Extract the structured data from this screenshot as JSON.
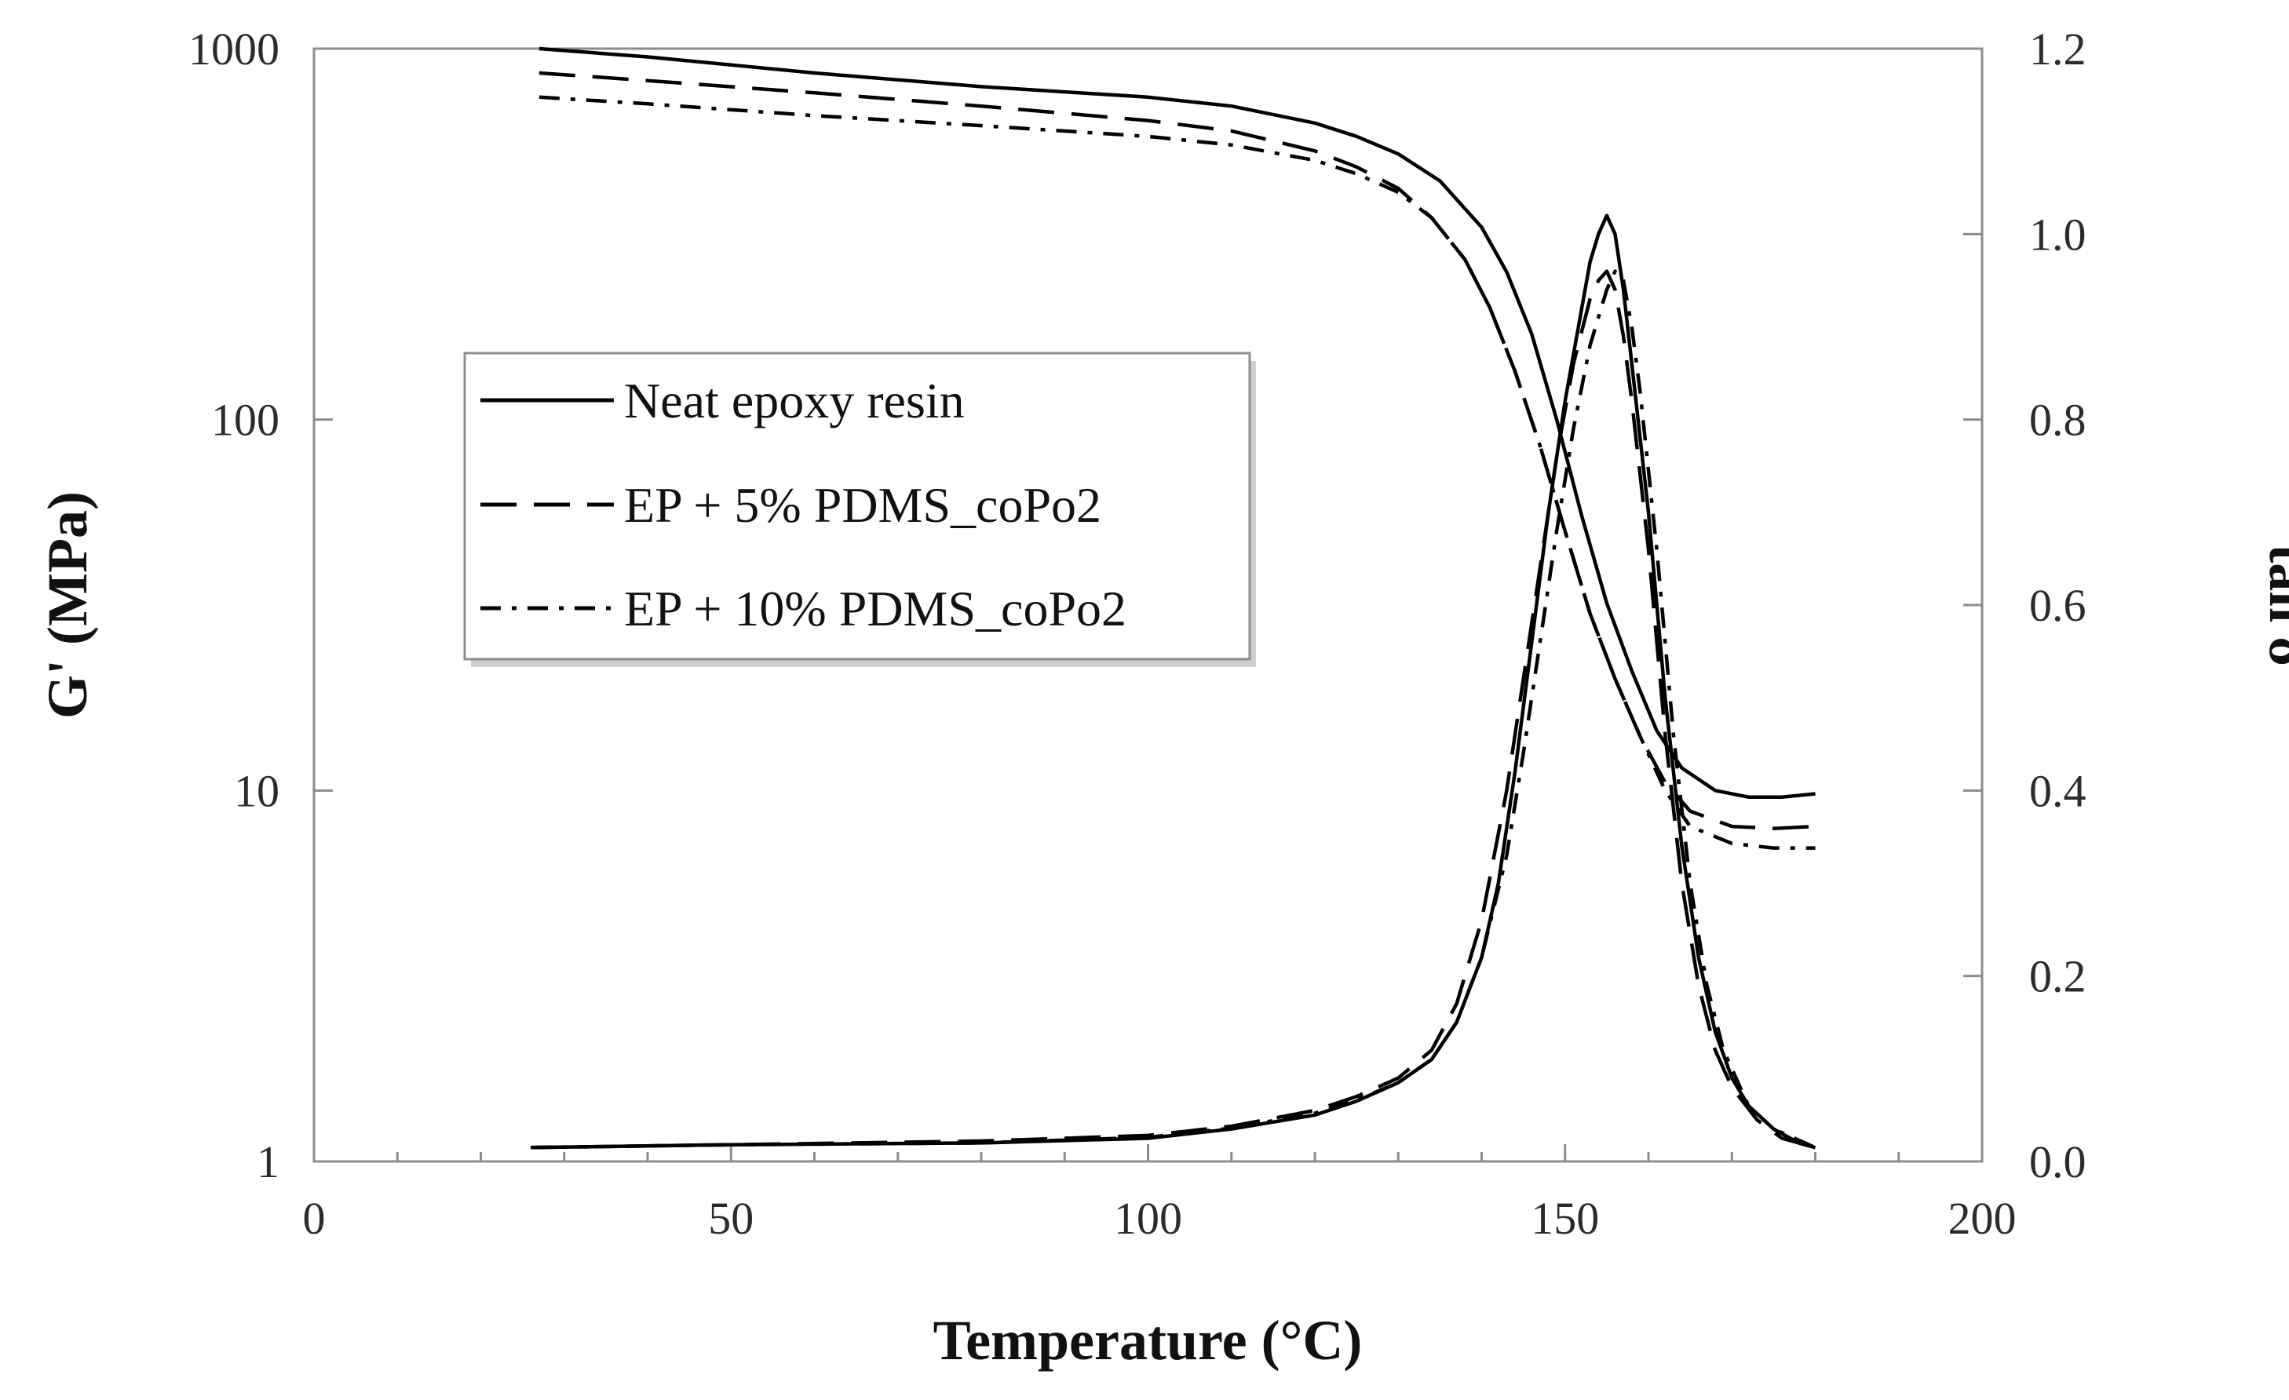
{
  "chart_data": {
    "type": "line",
    "title": "",
    "xlabel": "Temperature (°C)",
    "ylabel_left": "G' (MPa)",
    "ylabel_right": "tan δ",
    "xlim": [
      0,
      200
    ],
    "ylim_left": [
      1,
      1000
    ],
    "ylim_right": [
      0.0,
      1.2
    ],
    "yscale_left": "log",
    "grid": false,
    "legend_position": "center-left",
    "x_tick_labels": [
      "0",
      "50",
      "100",
      "150",
      "200"
    ],
    "y_left_tick_labels": [
      "1",
      "10",
      "100",
      "1000"
    ],
    "y_right_tick_labels": [
      "0.0",
      "0.2",
      "0.4",
      "0.6",
      "0.8",
      "1.0",
      "1.2"
    ],
    "series": [
      {
        "name": "Neat epoxy resin",
        "dash": "solid",
        "storage_modulus": {
          "x": [
            27,
            40,
            60,
            80,
            100,
            110,
            120,
            125,
            130,
            135,
            140,
            143,
            146,
            149,
            152,
            155,
            158,
            161,
            164,
            168,
            172,
            176,
            180
          ],
          "y": [
            1000,
            950,
            860,
            790,
            740,
            700,
            630,
            580,
            520,
            440,
            330,
            250,
            170,
            100,
            55,
            32,
            21,
            14.5,
            11.5,
            10,
            9.6,
            9.6,
            9.8
          ]
        },
        "tan_delta": {
          "x": [
            26,
            50,
            80,
            100,
            110,
            120,
            125,
            130,
            134,
            137,
            140,
            142,
            144,
            146,
            148,
            150,
            152,
            153,
            154,
            155,
            156,
            157,
            158,
            160,
            162,
            164,
            166,
            168,
            170,
            172,
            175,
            178,
            180
          ],
          "y": [
            0.015,
            0.018,
            0.02,
            0.025,
            0.035,
            0.05,
            0.065,
            0.085,
            0.11,
            0.15,
            0.22,
            0.3,
            0.42,
            0.56,
            0.7,
            0.82,
            0.92,
            0.97,
            1.0,
            1.02,
            1.0,
            0.94,
            0.86,
            0.7,
            0.5,
            0.34,
            0.22,
            0.14,
            0.09,
            0.06,
            0.035,
            0.02,
            0.015
          ]
        }
      },
      {
        "name": "EP + 5% PDMS_coPo2",
        "dash": "long-dash",
        "storage_modulus": {
          "x": [
            27,
            40,
            60,
            80,
            100,
            110,
            120,
            125,
            130,
            134,
            138,
            141,
            144,
            147,
            150,
            153,
            156,
            159,
            162,
            165,
            170,
            175,
            180
          ],
          "y": [
            860,
            820,
            760,
            700,
            640,
            600,
            530,
            480,
            420,
            350,
            270,
            200,
            135,
            85,
            50,
            30,
            20,
            14,
            10.5,
            8.8,
            8,
            7.9,
            8
          ]
        },
        "tan_delta": {
          "x": [
            26,
            50,
            80,
            100,
            110,
            120,
            125,
            130,
            134,
            137,
            140,
            143,
            145,
            147,
            149,
            151,
            153,
            154,
            155,
            156,
            157,
            158,
            160,
            162,
            164,
            166,
            168,
            170,
            173,
            176,
            180
          ],
          "y": [
            0.015,
            0.018,
            0.022,
            0.028,
            0.038,
            0.055,
            0.07,
            0.09,
            0.12,
            0.17,
            0.26,
            0.4,
            0.52,
            0.64,
            0.76,
            0.86,
            0.93,
            0.95,
            0.96,
            0.94,
            0.89,
            0.82,
            0.66,
            0.46,
            0.3,
            0.19,
            0.12,
            0.08,
            0.045,
            0.025,
            0.015
          ]
        }
      },
      {
        "name": "EP + 10% PDMS_coPo2",
        "dash": "dash-dot",
        "storage_modulus": {
          "x": [
            27,
            40,
            60,
            80,
            100,
            110,
            120,
            125,
            130,
            134,
            138,
            141,
            144,
            147,
            150,
            153,
            156,
            159,
            162,
            165,
            170,
            175,
            180
          ],
          "y": [
            740,
            710,
            660,
            620,
            580,
            550,
            500,
            460,
            410,
            350,
            270,
            200,
            135,
            85,
            50,
            30,
            20,
            14,
            10,
            8,
            7.2,
            7,
            7
          ]
        },
        "tan_delta": {
          "x": [
            26,
            50,
            80,
            100,
            110,
            120,
            125,
            130,
            134,
            137,
            140,
            143,
            145,
            147,
            149,
            151,
            153,
            155,
            156,
            157,
            158,
            159,
            161,
            163,
            165,
            167,
            169,
            172,
            175,
            180
          ],
          "y": [
            0.015,
            0.018,
            0.02,
            0.026,
            0.036,
            0.052,
            0.066,
            0.085,
            0.11,
            0.15,
            0.22,
            0.33,
            0.44,
            0.56,
            0.68,
            0.79,
            0.88,
            0.94,
            0.96,
            0.95,
            0.9,
            0.83,
            0.66,
            0.46,
            0.3,
            0.19,
            0.12,
            0.06,
            0.035,
            0.015
          ]
        }
      }
    ]
  }
}
